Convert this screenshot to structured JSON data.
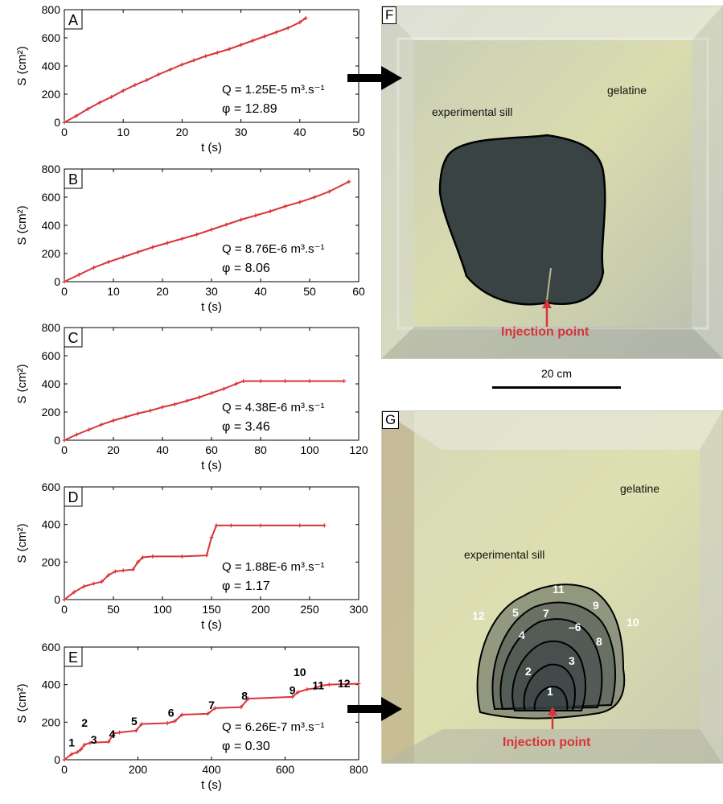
{
  "chart_data": [
    {
      "type": "line",
      "panel": "A",
      "xlabel": "t (s)",
      "ylabel": "S (cm²)",
      "xlim": [
        0,
        50
      ],
      "ylim": [
        0,
        800
      ],
      "xticks": [
        0,
        10,
        20,
        30,
        40,
        50
      ],
      "yticks": [
        0,
        200,
        400,
        600,
        800
      ],
      "x": [
        0,
        2,
        4,
        6,
        8,
        10,
        12,
        14,
        16,
        18,
        20,
        22,
        24,
        26,
        28,
        30,
        32,
        34,
        36,
        38,
        40,
        41
      ],
      "y": [
        0,
        45,
        95,
        140,
        180,
        225,
        265,
        300,
        340,
        375,
        410,
        440,
        470,
        495,
        520,
        550,
        580,
        610,
        640,
        670,
        710,
        740
      ],
      "annotation_q": "Q = 1.25E-5 m³.s⁻¹",
      "annotation_phi": "φ = 12.89",
      "color": "#d8343b"
    },
    {
      "type": "line",
      "panel": "B",
      "xlabel": "t (s)",
      "ylabel": "S (cm²)",
      "xlim": [
        0,
        60
      ],
      "ylim": [
        0,
        800
      ],
      "xticks": [
        0,
        10,
        20,
        30,
        40,
        50,
        60
      ],
      "yticks": [
        0,
        200,
        400,
        600,
        800
      ],
      "x": [
        0,
        3,
        6,
        9,
        12,
        15,
        18,
        21,
        24,
        27,
        30,
        33,
        36,
        39,
        42,
        45,
        48,
        51,
        54,
        58
      ],
      "y": [
        0,
        50,
        100,
        140,
        175,
        210,
        245,
        275,
        305,
        335,
        370,
        405,
        440,
        470,
        500,
        535,
        565,
        600,
        640,
        710
      ],
      "annotation_q": "Q = 8.76E-6 m³.s⁻¹",
      "annotation_phi": "φ = 8.06",
      "color": "#d8343b"
    },
    {
      "type": "line",
      "panel": "C",
      "xlabel": "t (s)",
      "ylabel": "S (cm²)",
      "xlim": [
        0,
        120
      ],
      "ylim": [
        0,
        800
      ],
      "xticks": [
        0,
        20,
        40,
        60,
        80,
        100,
        120
      ],
      "yticks": [
        0,
        200,
        400,
        600,
        800
      ],
      "x": [
        0,
        5,
        10,
        15,
        20,
        25,
        30,
        35,
        40,
        45,
        50,
        55,
        60,
        65,
        70,
        73,
        80,
        90,
        100,
        114
      ],
      "y": [
        0,
        40,
        75,
        110,
        140,
        165,
        190,
        210,
        235,
        255,
        280,
        305,
        335,
        365,
        400,
        420,
        420,
        420,
        420,
        420
      ],
      "annotation_q": "Q = 4.38E-6 m³.s⁻¹",
      "annotation_phi": "φ = 3.46",
      "color": "#d8343b"
    },
    {
      "type": "line",
      "panel": "D",
      "xlabel": "t (s)",
      "ylabel": "S (cm²)",
      "xlim": [
        0,
        300
      ],
      "ylim": [
        0,
        600
      ],
      "xticks": [
        0,
        50,
        100,
        150,
        200,
        250,
        300
      ],
      "yticks": [
        0,
        200,
        400,
        600
      ],
      "x": [
        0,
        10,
        20,
        30,
        38,
        45,
        52,
        60,
        70,
        75,
        80,
        90,
        120,
        145,
        150,
        155,
        170,
        200,
        240,
        265
      ],
      "y": [
        0,
        40,
        70,
        85,
        95,
        130,
        150,
        155,
        160,
        200,
        225,
        230,
        230,
        235,
        330,
        395,
        395,
        395,
        395,
        395
      ],
      "annotation_q": "Q = 1.88E-6 m³.s⁻¹",
      "annotation_phi": "φ = 1.17",
      "color": "#d8343b"
    },
    {
      "type": "line",
      "panel": "E",
      "xlabel": "t (s)",
      "ylabel": "S (cm²)",
      "xlim": [
        0,
        800
      ],
      "ylim": [
        0,
        600
      ],
      "xticks": [
        0,
        200,
        400,
        600,
        800
      ],
      "yticks": [
        0,
        200,
        400,
        600
      ],
      "x": [
        0,
        20,
        35,
        45,
        55,
        70,
        120,
        135,
        150,
        195,
        210,
        280,
        300,
        320,
        390,
        410,
        480,
        500,
        620,
        635,
        660,
        680,
        700,
        720,
        800
      ],
      "y": [
        0,
        30,
        40,
        55,
        80,
        90,
        95,
        140,
        145,
        155,
        190,
        195,
        205,
        240,
        245,
        275,
        280,
        325,
        335,
        360,
        375,
        380,
        395,
        400,
        405
      ],
      "step_labels": [
        "1",
        "2",
        "3",
        "4",
        "5",
        "6",
        "7",
        "8",
        "9",
        "10",
        "11",
        "12"
      ],
      "step_label_positions": [
        [
          20,
          70
        ],
        [
          55,
          175
        ],
        [
          80,
          85
        ],
        [
          130,
          115
        ],
        [
          190,
          185
        ],
        [
          290,
          230
        ],
        [
          400,
          270
        ],
        [
          490,
          320
        ],
        [
          620,
          350
        ],
        [
          640,
          445
        ],
        [
          690,
          375
        ],
        [
          760,
          385
        ]
      ],
      "annotation_q": "Q = 6.26E-7 m³.s⁻¹",
      "annotation_phi": "φ = 0.30",
      "color": "#d8343b"
    }
  ],
  "photos": {
    "F": {
      "tag": "F",
      "label_gelatine": "gelatine",
      "label_sill": "experimental sill",
      "label_injection": "Injection point"
    },
    "G": {
      "tag": "G",
      "label_gelatine": "gelatine",
      "label_sill": "experimental sill",
      "label_injection": "Injection point",
      "contour_labels": [
        "1",
        "2",
        "3",
        "4",
        "5",
        "–6",
        "7",
        "8",
        "9",
        "10",
        "11",
        "12"
      ]
    }
  },
  "scalebar": {
    "label": "20 cm"
  },
  "colors": {
    "series": "#d8343b",
    "gelatine": "#d9dcae",
    "sill": "#3a4344",
    "injection": "#d8343b"
  }
}
